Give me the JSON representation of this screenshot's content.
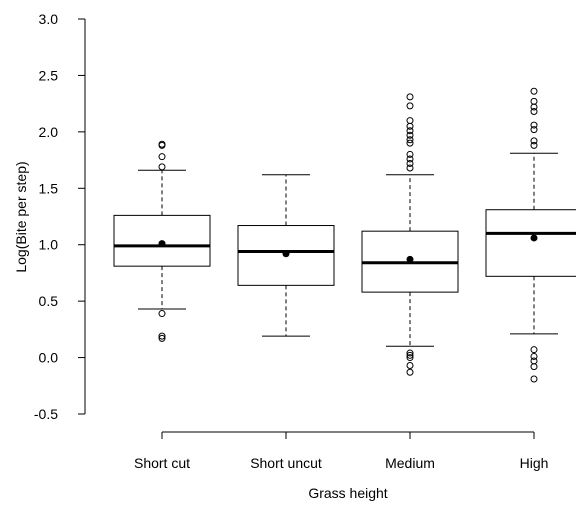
{
  "chart_data": {
    "type": "boxplot",
    "title": "",
    "xlabel": "Grass height",
    "ylabel": "Log(Bite per step)",
    "ylim": [
      -0.5,
      3.0
    ],
    "yticks": [
      "3.0",
      "2.5",
      "2.0",
      "1.5",
      "1.0",
      "0.5",
      "0.0",
      "-0.5"
    ],
    "ytick_values": [
      3.0,
      2.5,
      2.0,
      1.5,
      1.0,
      0.5,
      0.0,
      -0.5
    ],
    "categories": [
      "Short cut",
      "Short uncut",
      "Medium",
      "High"
    ],
    "boxes": [
      {
        "category": "Short cut",
        "whisker_low": 0.43,
        "q1": 0.81,
        "median": 0.99,
        "q3": 1.26,
        "whisker_high": 1.66,
        "mean": 1.01,
        "outliers": [
          0.17,
          0.19,
          0.39,
          1.69,
          1.78,
          1.88,
          1.89
        ]
      },
      {
        "category": "Short uncut",
        "whisker_low": 0.19,
        "q1": 0.64,
        "median": 0.94,
        "q3": 1.17,
        "whisker_high": 1.62,
        "mean": 0.92,
        "outliers": []
      },
      {
        "category": "Medium",
        "whisker_low": 0.1,
        "q1": 0.58,
        "median": 0.84,
        "q3": 1.12,
        "whisker_high": 1.62,
        "mean": 0.87,
        "outliers": [
          -0.13,
          -0.07,
          0.0,
          0.02,
          0.04,
          1.68,
          1.72,
          1.76,
          1.8,
          1.9,
          1.93,
          1.97,
          2.01,
          2.05,
          2.1,
          2.23,
          2.31
        ]
      },
      {
        "category": "High",
        "whisker_low": 0.21,
        "q1": 0.72,
        "median": 1.1,
        "q3": 1.31,
        "whisker_high": 1.81,
        "mean": 1.06,
        "outliers": [
          -0.19,
          -0.08,
          -0.03,
          0.01,
          0.07,
          1.88,
          1.92,
          2.02,
          2.06,
          2.18,
          2.22,
          2.27,
          2.36
        ]
      }
    ],
    "colors": {
      "box_stroke": "#000000",
      "background": "#ffffff"
    }
  }
}
